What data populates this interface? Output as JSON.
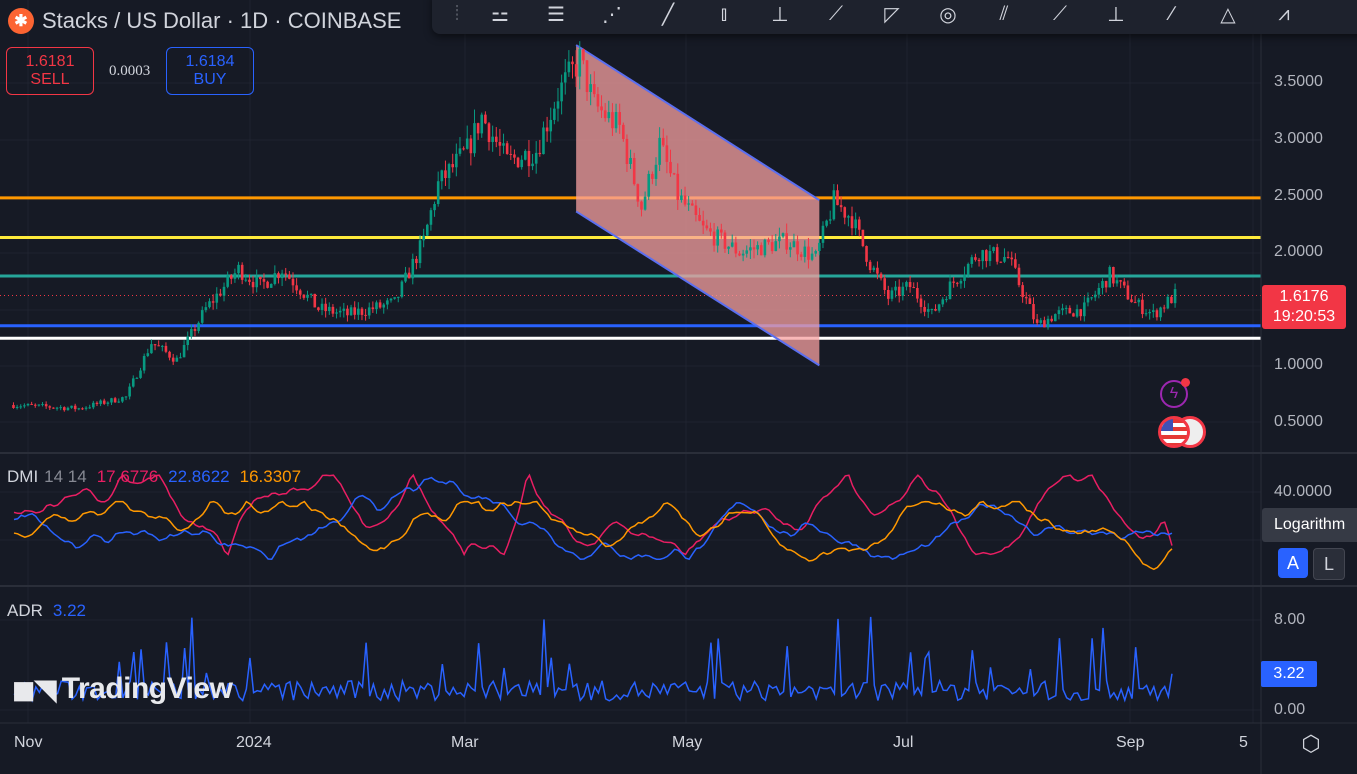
{
  "header": {
    "symbol_icon": "stacks-logo",
    "title": "Stacks / US Dollar · 1D · COINBASE"
  },
  "trade": {
    "sell_price": "1.6181",
    "sell_label": "SELL",
    "spread": "0.0003",
    "buy_price": "1.6184",
    "buy_label": "BUY"
  },
  "toolbar": {
    "icons": [
      "drag-handle-icon",
      "regression-trend-icon",
      "parallel-channel-icon",
      "pitchfork-icon",
      "trend-line-icon",
      "long-position-icon",
      "vertical-line-icon",
      "price-range-icon",
      "fib-fan-icon",
      "fib-circle-icon",
      "fib-channel-icon",
      "trend-angle-icon",
      "anchored-vwap-icon",
      "ray-icon",
      "triangle-pattern-icon",
      "abcd-pattern-icon"
    ]
  },
  "colors": {
    "background": "#161a25",
    "up": "#089981",
    "down": "#f23645",
    "dmi_plus": "#2962ff",
    "dmi_minus": "#e91e63",
    "adx": "#ff9800",
    "adr": "#2962ff"
  },
  "chart_data": [
    {
      "type": "candlestick",
      "title": "Stacks / US Dollar · 1D · COINBASE",
      "price_axis_ticks": [
        "3.5000",
        "3.0000",
        "2.5000",
        "2.0000",
        "1.0000",
        "0.5000"
      ],
      "time_axis_ticks": [
        "Nov",
        "2024",
        "Mar",
        "May",
        "Jul",
        "Sep",
        "5"
      ],
      "ylim": [
        0.35,
        3.9
      ],
      "approx_close_path": [
        [
          "2023-10-28",
          0.65
        ],
        [
          "2023-11-15",
          0.62
        ],
        [
          "2023-11-28",
          0.72
        ],
        [
          "2023-12-05",
          1.2
        ],
        [
          "2023-12-12",
          1.05
        ],
        [
          "2023-12-20",
          1.5
        ],
        [
          "2023-12-29",
          1.85
        ],
        [
          "2024-01-04",
          1.7
        ],
        [
          "2024-01-10",
          1.85
        ],
        [
          "2024-01-20",
          1.5
        ],
        [
          "2024-01-28",
          1.45
        ],
        [
          "2024-02-10",
          1.55
        ],
        [
          "2024-02-18",
          2.1
        ],
        [
          "2024-02-22",
          2.6
        ],
        [
          "2024-03-01",
          2.9
        ],
        [
          "2024-03-05",
          3.2
        ],
        [
          "2024-03-12",
          2.8
        ],
        [
          "2024-03-20",
          2.9
        ],
        [
          "2024-03-26",
          3.4
        ],
        [
          "2024-04-01",
          3.7
        ],
        [
          "2024-04-05",
          3.3
        ],
        [
          "2024-04-12",
          3.1
        ],
        [
          "2024-04-18",
          2.4
        ],
        [
          "2024-04-23",
          2.95
        ],
        [
          "2024-04-28",
          2.5
        ],
        [
          "2024-05-05",
          2.2
        ],
        [
          "2024-05-15",
          2.0
        ],
        [
          "2024-05-28",
          2.1
        ],
        [
          "2024-06-05",
          1.95
        ],
        [
          "2024-06-10",
          2.45
        ],
        [
          "2024-06-15",
          2.3
        ],
        [
          "2024-06-20",
          1.9
        ],
        [
          "2024-06-25",
          1.6
        ],
        [
          "2024-07-01",
          1.7
        ],
        [
          "2024-07-07",
          1.45
        ],
        [
          "2024-07-12",
          1.7
        ],
        [
          "2024-07-20",
          2.0
        ],
        [
          "2024-07-28",
          1.95
        ],
        [
          "2024-08-05",
          1.35
        ],
        [
          "2024-08-10",
          1.45
        ],
        [
          "2024-08-18",
          1.5
        ],
        [
          "2024-08-25",
          1.8
        ],
        [
          "2024-09-01",
          1.55
        ],
        [
          "2024-09-06",
          1.45
        ],
        [
          "2024-09-12",
          1.62
        ]
      ],
      "last_price": "1.6176",
      "countdown": "19:20:53",
      "horizontal_levels": [
        {
          "price": 2.48,
          "color": "#ff9800"
        },
        {
          "price": 2.13,
          "color": "#ffeb3b"
        },
        {
          "price": 1.79,
          "color": "#26a69a"
        },
        {
          "price": 1.35,
          "color": "#2962ff"
        },
        {
          "price": 1.24,
          "color": "#ffffff"
        }
      ],
      "channel": {
        "fill": "#f7a0a0",
        "border": "#5b6ff0",
        "upper": [
          [
            "2024-03-31",
            3.83
          ],
          [
            "2024-06-06",
            2.46
          ]
        ],
        "lower": [
          [
            "2024-03-31",
            2.36
          ],
          [
            "2024-06-06",
            1.0
          ]
        ]
      }
    },
    {
      "type": "line",
      "name": "DMI",
      "params": "14 14",
      "values": {
        "minus_di": "17.6776",
        "plus_di": "22.8622",
        "adx": "16.3307"
      },
      "axis_ticks": [
        "40.0000"
      ],
      "scale_tooltip": "Logarithm",
      "auto_label": "A",
      "log_label": "L"
    },
    {
      "type": "line",
      "name": "ADR",
      "value": "3.22",
      "axis_ticks": [
        "8.00",
        "0.00"
      ]
    }
  ],
  "watermark": "TradingView"
}
